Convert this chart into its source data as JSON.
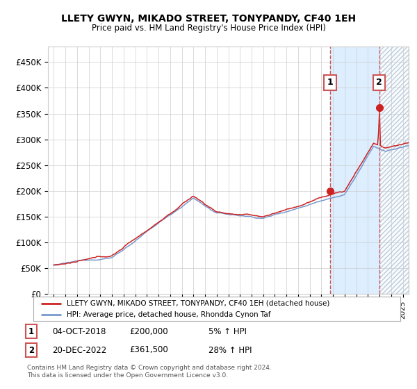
{
  "title": "LLETY GWYN, MIKADO STREET, TONYPANDY, CF40 1EH",
  "subtitle": "Price paid vs. HM Land Registry's House Price Index (HPI)",
  "ylabel_ticks": [
    "£0",
    "£50K",
    "£100K",
    "£150K",
    "£200K",
    "£250K",
    "£300K",
    "£350K",
    "£400K",
    "£450K"
  ],
  "ytick_values": [
    0,
    50000,
    100000,
    150000,
    200000,
    250000,
    300000,
    350000,
    400000,
    450000
  ],
  "xlim_start": 1994.5,
  "xlim_end": 2025.5,
  "ylim": [
    0,
    480000
  ],
  "hpi_color": "#7799cc",
  "price_color": "#cc2222",
  "marker1_date": 2018.75,
  "marker1_price": 200000,
  "marker2_date": 2022.97,
  "marker2_price": 361500,
  "vline_color": "#cc5555",
  "highlight_color": "#ddeeff",
  "legend_label1": "LLETY GWYN, MIKADO STREET, TONYPANDY, CF40 1EH (detached house)",
  "legend_label2": "HPI: Average price, detached house, Rhondda Cynon Taf",
  "table_row1": [
    "1",
    "04-OCT-2018",
    "£200,000",
    "5% ↑ HPI"
  ],
  "table_row2": [
    "2",
    "20-DEC-2022",
    "£361,500",
    "28% ↑ HPI"
  ],
  "footer": "Contains HM Land Registry data © Crown copyright and database right 2024.\nThis data is licensed under the Open Government Licence v3.0.",
  "background_color": "#ffffff",
  "grid_color": "#cccccc"
}
